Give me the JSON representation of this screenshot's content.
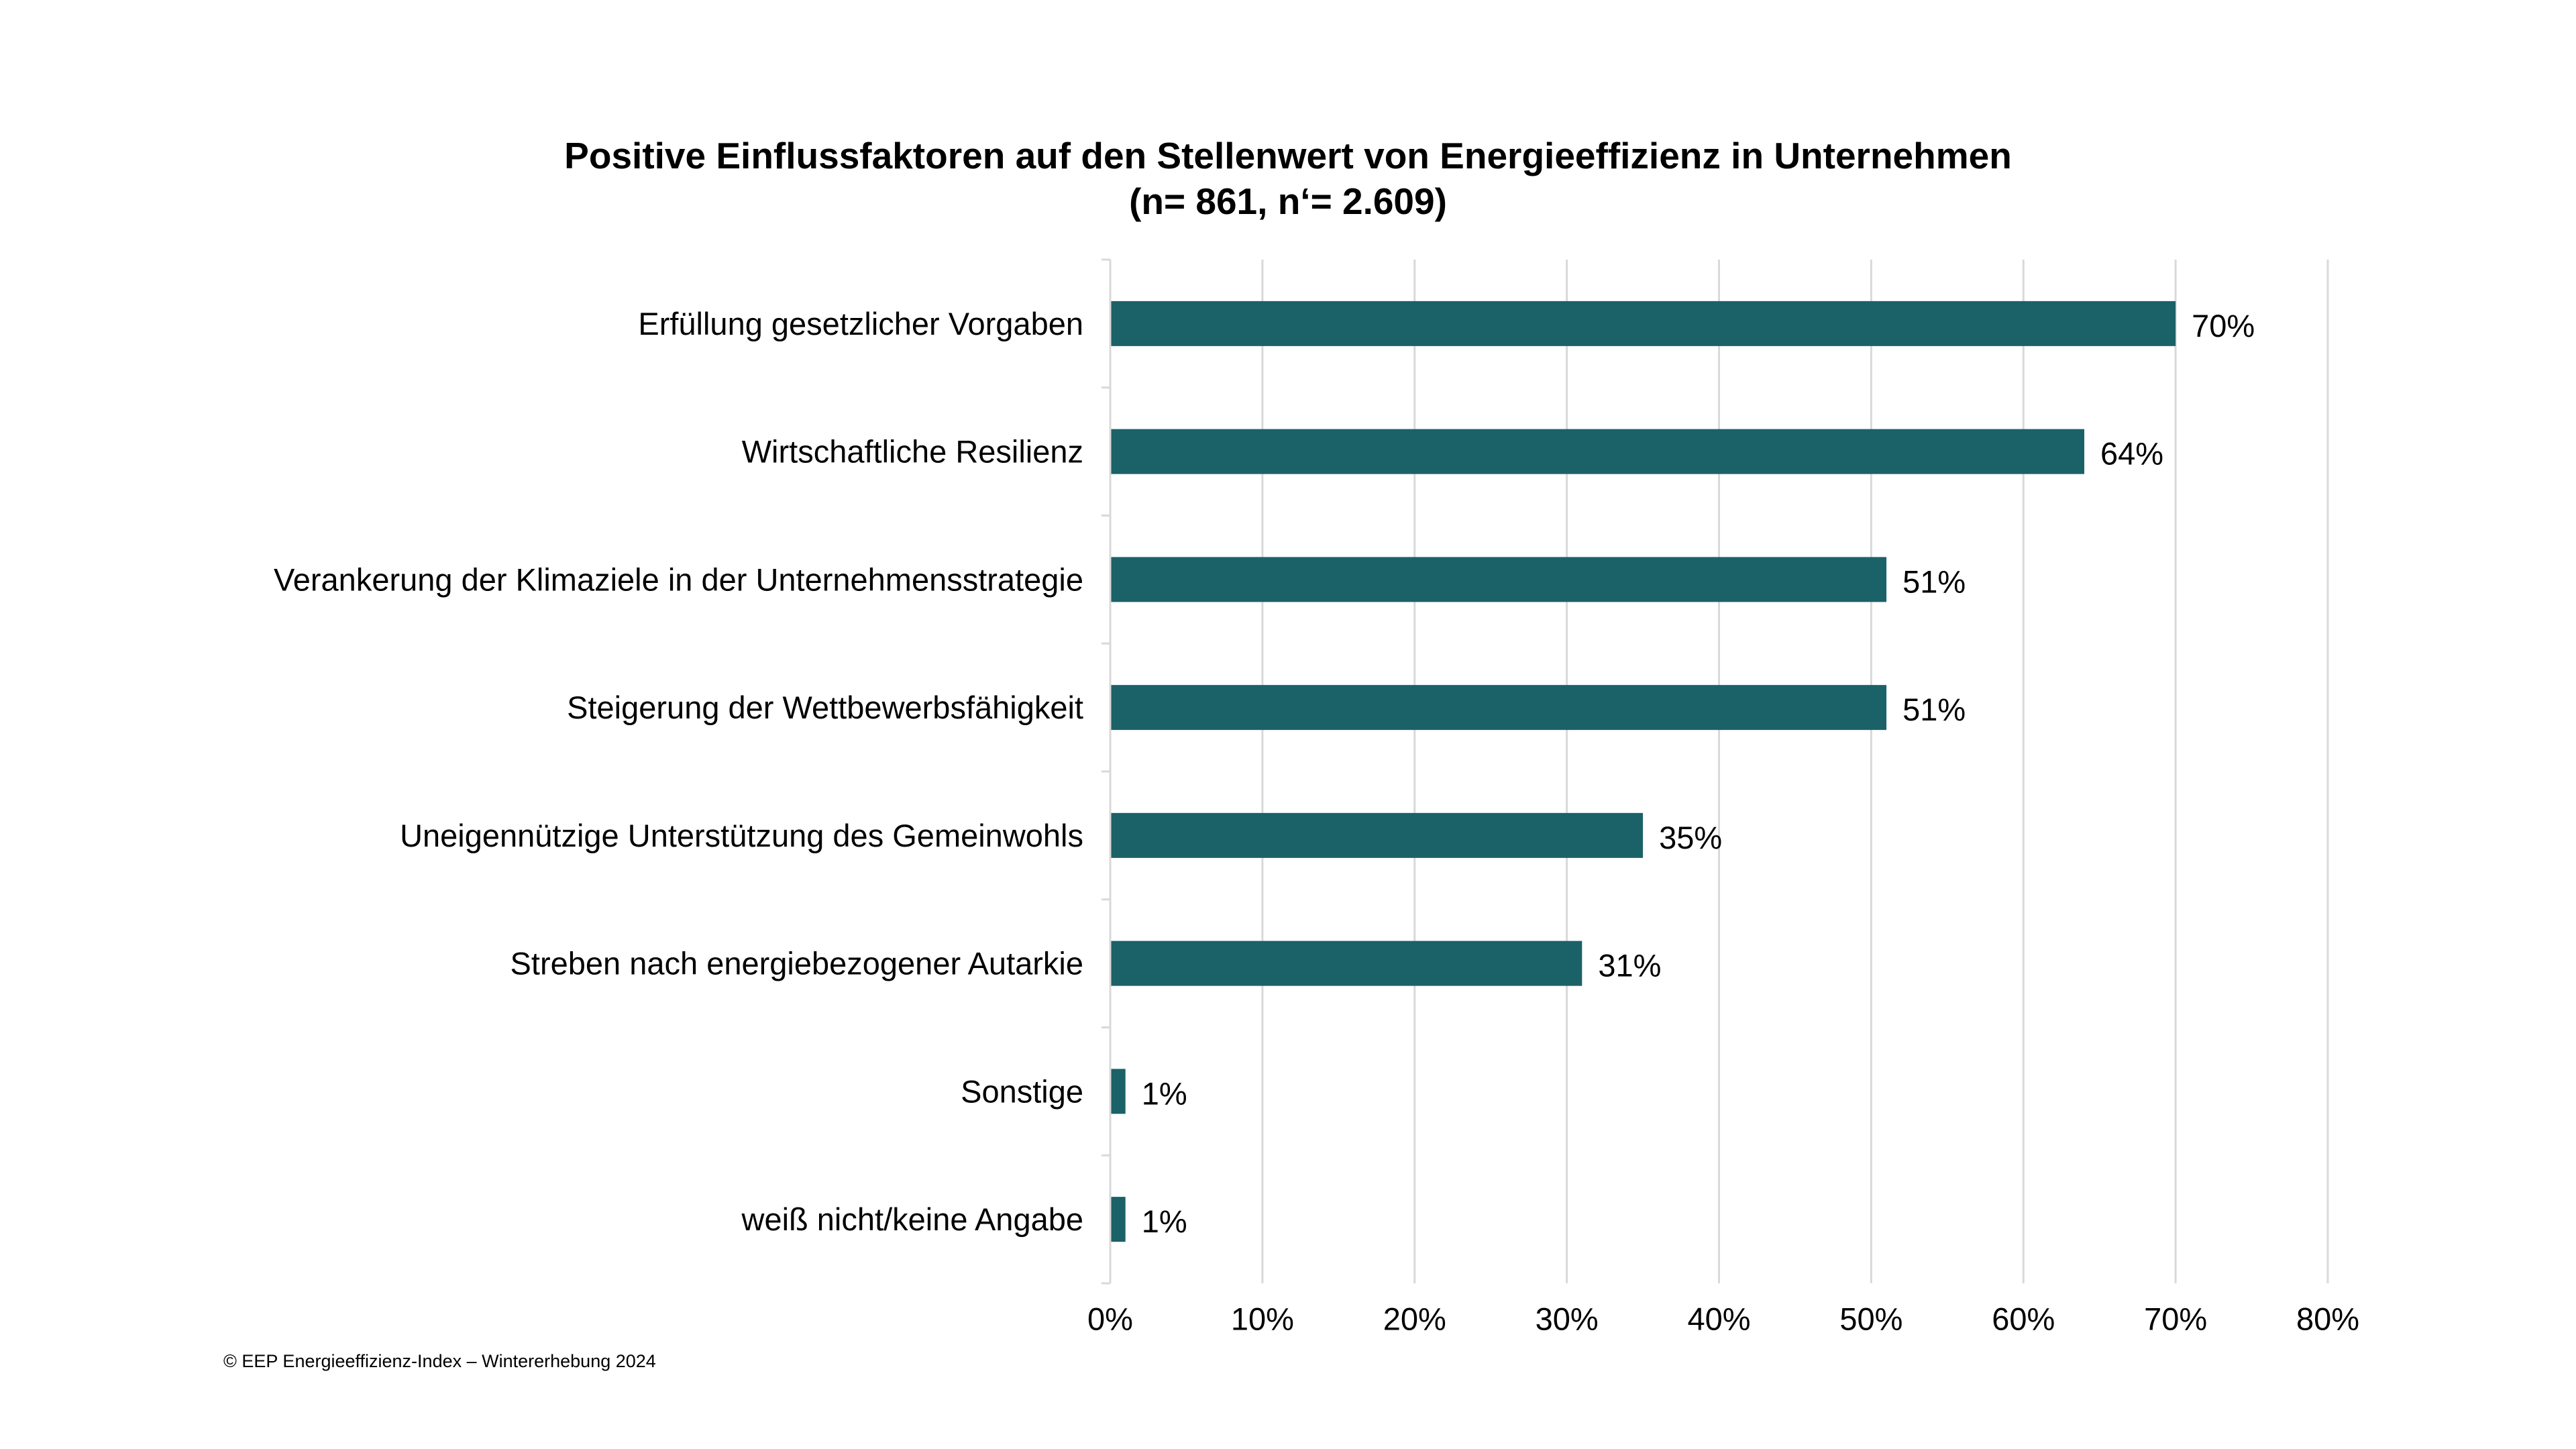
{
  "chart_data": {
    "type": "bar",
    "orientation": "horizontal",
    "title": "Positive Einflussfaktoren auf den Stellenwert von Energieeffizienz in Unternehmen",
    "subtitle": "(n= 861, n‘= 2.609)",
    "categories": [
      "Erfüllung gesetzlicher Vorgaben",
      "Wirtschaftliche Resilienz",
      "Verankerung der Klimaziele in der Unternehmensstrategie",
      "Steigerung der Wettbewerbsfähigkeit",
      "Uneigennützige Unterstützung des Gemeinwohls",
      "Streben nach energiebezogener Autarkie",
      "Sonstige",
      "weiß nicht/keine Angabe"
    ],
    "values": [
      70,
      64,
      51,
      51,
      35,
      31,
      1,
      1
    ],
    "data_labels": [
      "70%",
      "64%",
      "51%",
      "51%",
      "35%",
      "31%",
      "1%",
      "1%"
    ],
    "x_ticks": [
      0,
      10,
      20,
      30,
      40,
      50,
      60,
      70,
      80
    ],
    "x_tick_labels": [
      "0%",
      "10%",
      "20%",
      "30%",
      "40%",
      "50%",
      "60%",
      "70%",
      "80%"
    ],
    "xlim": [
      0,
      80
    ],
    "xlabel": "",
    "ylabel": "",
    "grid": true,
    "legend": "none",
    "bar_color": "#1b6168",
    "grid_color": "#d9d9d9"
  },
  "footer": {
    "source": "© EEP Energieeffizienz-Index – Wintererhebung 2024"
  }
}
